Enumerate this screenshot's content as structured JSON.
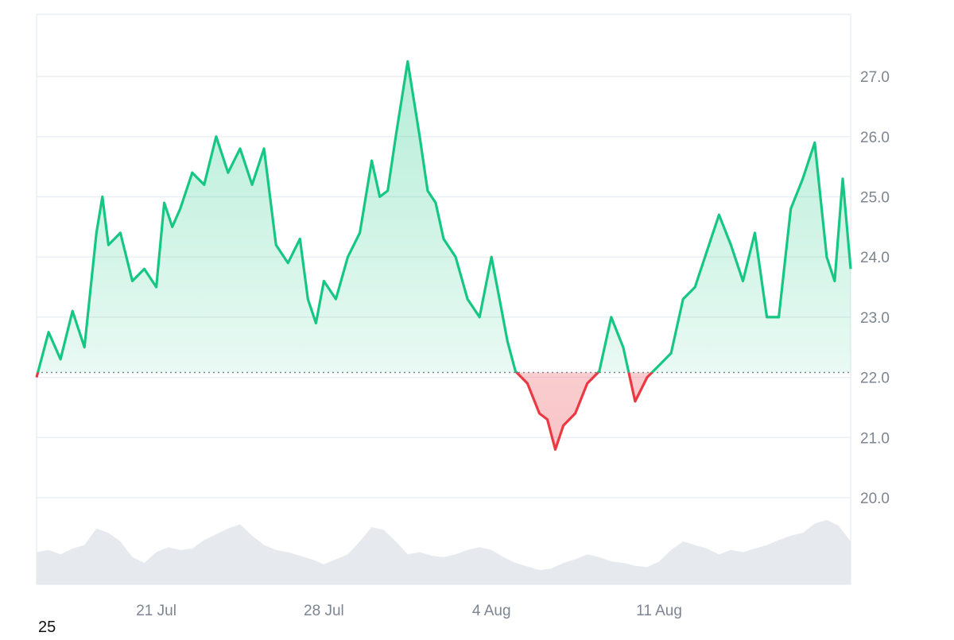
{
  "corner_label": "25",
  "colors": {
    "up": "#16c784",
    "down": "#ea3943",
    "grid": "#eceff3",
    "volume": "#e6eaee",
    "baseline": "#7d8590",
    "tick_text": "#7d8590"
  },
  "chart_data": {
    "type": "area",
    "title": "",
    "xlabel": "",
    "ylabel": "",
    "x_range": [
      "2025-07-16",
      "2025-08-19"
    ],
    "ylim": [
      19.0,
      28.0
    ],
    "y_ticks": [
      20.0,
      21.0,
      22.0,
      23.0,
      24.0,
      25.0,
      26.0,
      27.0
    ],
    "y_tick_labels": [
      "20.0",
      "21.0",
      "22.0",
      "23.0",
      "24.0",
      "25.0",
      "26.0",
      "27.0"
    ],
    "x_ticks": [
      {
        "date": "2025-07-21",
        "label": "21 Jul"
      },
      {
        "date": "2025-07-28",
        "label": "28 Jul"
      },
      {
        "date": "2025-08-04",
        "label": "4 Aug"
      },
      {
        "date": "2025-08-11",
        "label": "11 Aug"
      }
    ],
    "baseline": 22.08,
    "grid": true,
    "series": [
      {
        "points": [
          [
            "2025-07-16",
            22.0
          ],
          [
            "2025-07-16T12:00",
            22.75
          ],
          [
            "2025-07-17",
            22.3
          ],
          [
            "2025-07-17T12:00",
            23.1
          ],
          [
            "2025-07-18",
            22.5
          ],
          [
            "2025-07-18T12:00",
            24.4
          ],
          [
            "2025-07-18T18:00",
            25.0
          ],
          [
            "2025-07-19",
            24.2
          ],
          [
            "2025-07-19T12:00",
            24.4
          ],
          [
            "2025-07-20",
            23.6
          ],
          [
            "2025-07-20T12:00",
            23.8
          ],
          [
            "2025-07-21",
            23.5
          ],
          [
            "2025-07-21T08:00",
            24.9
          ],
          [
            "2025-07-21T16:00",
            24.5
          ],
          [
            "2025-07-22",
            24.8
          ],
          [
            "2025-07-22T12:00",
            25.4
          ],
          [
            "2025-07-23",
            25.2
          ],
          [
            "2025-07-23T12:00",
            26.0
          ],
          [
            "2025-07-24",
            25.4
          ],
          [
            "2025-07-24T12:00",
            25.8
          ],
          [
            "2025-07-25",
            25.2
          ],
          [
            "2025-07-25T12:00",
            25.8
          ],
          [
            "2025-07-26",
            24.2
          ],
          [
            "2025-07-26T12:00",
            23.9
          ],
          [
            "2025-07-27",
            24.3
          ],
          [
            "2025-07-27T08:00",
            23.3
          ],
          [
            "2025-07-27T16:00",
            22.9
          ],
          [
            "2025-07-28",
            23.6
          ],
          [
            "2025-07-28T12:00",
            23.3
          ],
          [
            "2025-07-29",
            24.0
          ],
          [
            "2025-07-29T12:00",
            24.4
          ],
          [
            "2025-07-30",
            25.6
          ],
          [
            "2025-07-30T08:00",
            25.0
          ],
          [
            "2025-07-30T16:00",
            25.1
          ],
          [
            "2025-07-31",
            26.0
          ],
          [
            "2025-07-31T12:00",
            27.25
          ],
          [
            "2025-08-01",
            26.0
          ],
          [
            "2025-08-01T08:00",
            25.1
          ],
          [
            "2025-08-01T16:00",
            24.9
          ],
          [
            "2025-08-02",
            24.3
          ],
          [
            "2025-08-02T12:00",
            24.0
          ],
          [
            "2025-08-03",
            23.3
          ],
          [
            "2025-08-03T12:00",
            23.0
          ],
          [
            "2025-08-04",
            24.0
          ],
          [
            "2025-08-04T08:00",
            23.3
          ],
          [
            "2025-08-04T16:00",
            22.6
          ],
          [
            "2025-08-05",
            22.1
          ],
          [
            "2025-08-05T12:00",
            21.9
          ],
          [
            "2025-08-06",
            21.4
          ],
          [
            "2025-08-06T08:00",
            21.3
          ],
          [
            "2025-08-06T16:00",
            20.8
          ],
          [
            "2025-08-07",
            21.2
          ],
          [
            "2025-08-07T12:00",
            21.4
          ],
          [
            "2025-08-08",
            21.9
          ],
          [
            "2025-08-08T12:00",
            22.1
          ],
          [
            "2025-08-09",
            23.0
          ],
          [
            "2025-08-09T12:00",
            22.5
          ],
          [
            "2025-08-10",
            21.6
          ],
          [
            "2025-08-10T12:00",
            22.0
          ],
          [
            "2025-08-11",
            22.2
          ],
          [
            "2025-08-11T12:00",
            22.4
          ],
          [
            "2025-08-12",
            23.3
          ],
          [
            "2025-08-12T12:00",
            23.5
          ],
          [
            "2025-08-13",
            24.1
          ],
          [
            "2025-08-13T12:00",
            24.7
          ],
          [
            "2025-08-14",
            24.2
          ],
          [
            "2025-08-14T12:00",
            23.6
          ],
          [
            "2025-08-15",
            24.4
          ],
          [
            "2025-08-15T12:00",
            23.0
          ],
          [
            "2025-08-16",
            23.0
          ],
          [
            "2025-08-16T12:00",
            24.8
          ],
          [
            "2025-08-17",
            25.3
          ],
          [
            "2025-08-17T12:00",
            25.9
          ],
          [
            "2025-08-18",
            24.0
          ],
          [
            "2025-08-18T08:00",
            23.6
          ],
          [
            "2025-08-18T16:00",
            25.3
          ],
          [
            "2025-08-19",
            23.8
          ]
        ]
      }
    ],
    "volume_series": {
      "note_free": true,
      "scale": [
        0,
        1
      ],
      "values": [
        0.45,
        0.48,
        0.42,
        0.5,
        0.55,
        0.78,
        0.72,
        0.6,
        0.38,
        0.3,
        0.45,
        0.52,
        0.48,
        0.5,
        0.62,
        0.7,
        0.78,
        0.84,
        0.68,
        0.55,
        0.48,
        0.45,
        0.4,
        0.35,
        0.28,
        0.35,
        0.42,
        0.6,
        0.8,
        0.76,
        0.6,
        0.42,
        0.45,
        0.4,
        0.38,
        0.42,
        0.48,
        0.52,
        0.48,
        0.38,
        0.3,
        0.25,
        0.2,
        0.22,
        0.3,
        0.35,
        0.42,
        0.38,
        0.32,
        0.3,
        0.26,
        0.24,
        0.32,
        0.48,
        0.6,
        0.55,
        0.5,
        0.42,
        0.48,
        0.45,
        0.5,
        0.55,
        0.62,
        0.68,
        0.72,
        0.85,
        0.9,
        0.82,
        0.6
      ]
    }
  }
}
